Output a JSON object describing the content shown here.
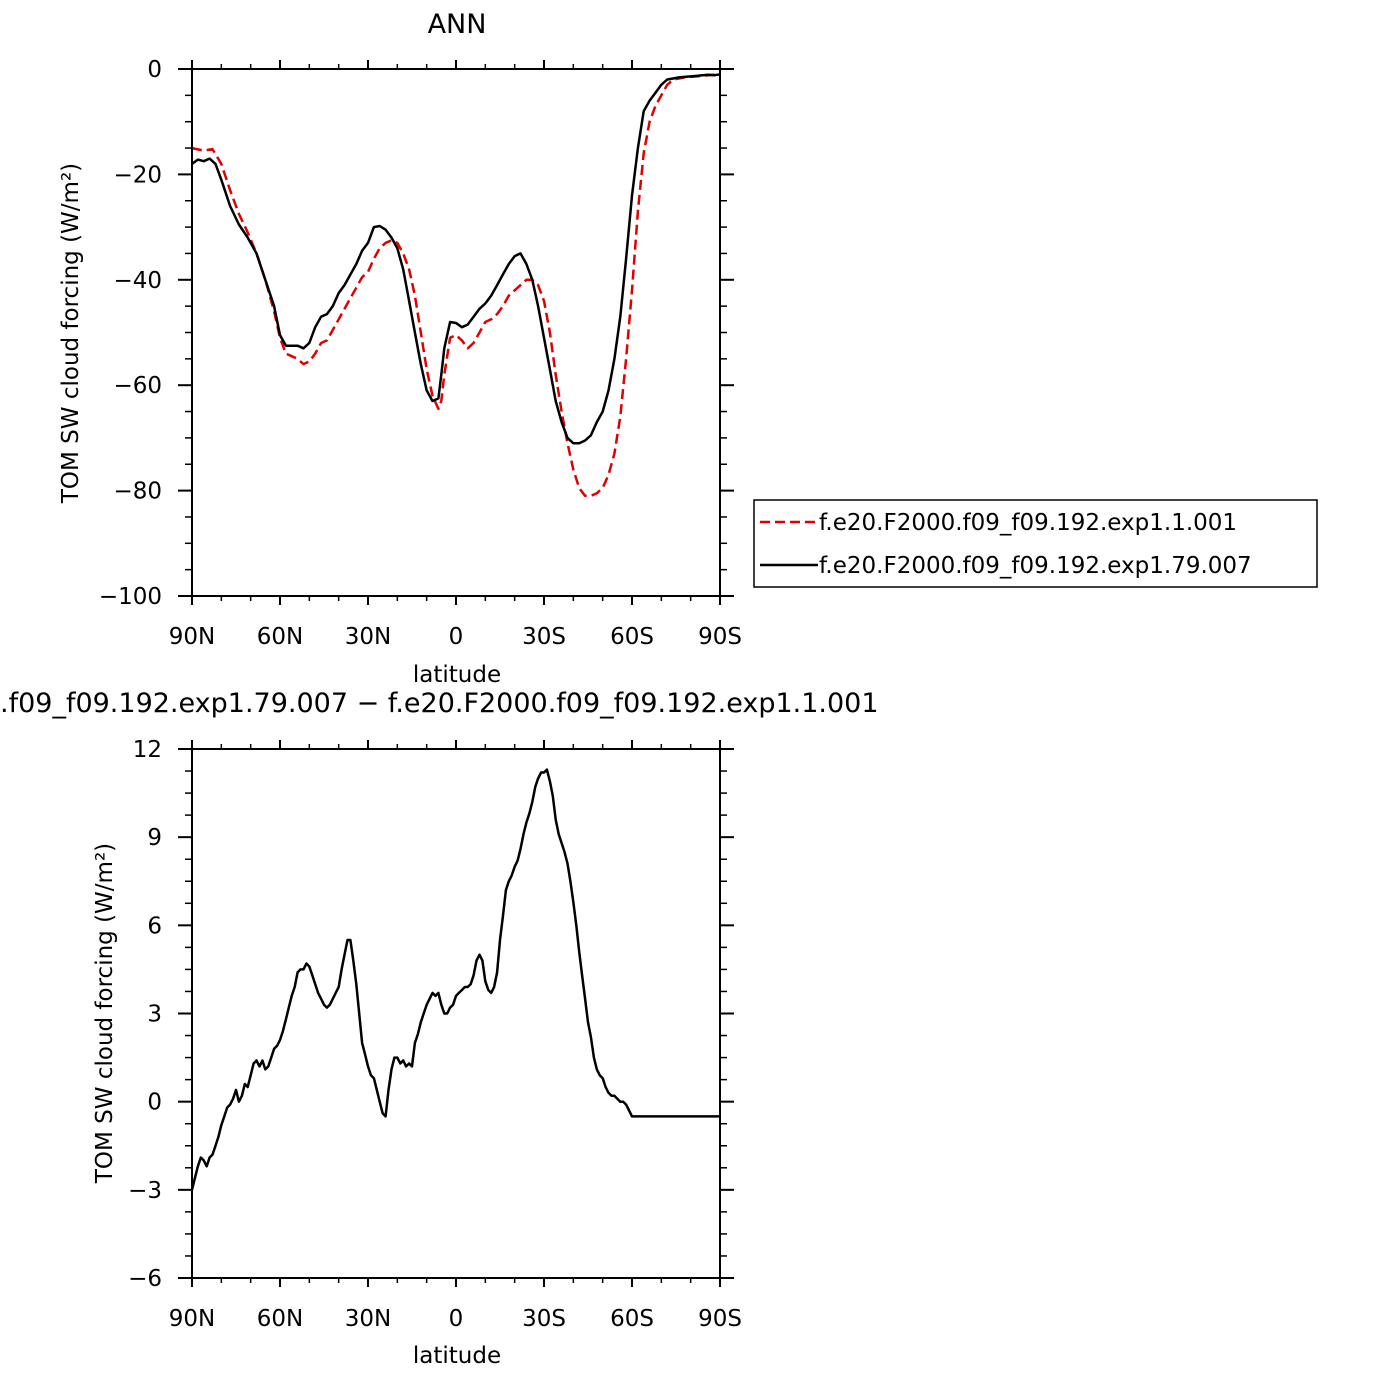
{
  "chart_data": [
    {
      "type": "line",
      "title": "ANN",
      "xlabel": "latitude",
      "ylabel": "TOM SW cloud forcing (W/m²)",
      "xlim": [
        90,
        -90
      ],
      "ylim": [
        -100,
        0
      ],
      "x_ticks": [
        90,
        60,
        30,
        0,
        -30,
        -60,
        -90
      ],
      "x_tick_labels": [
        "90N",
        "60N",
        "30N",
        "0",
        "30S",
        "60S",
        "90S"
      ],
      "y_ticks": [
        0,
        -20,
        -40,
        -60,
        -80,
        -100
      ],
      "y_tick_labels": [
        "0",
        "−20",
        "−40",
        "−60",
        "−80",
        "−100"
      ],
      "legend_position": "right",
      "series": [
        {
          "name": "f.e20.F2000.f09_f09.192.exp1.1.001",
          "color": "#e00000",
          "dash": "dashed",
          "x": [
            90,
            86,
            83,
            80,
            77,
            74,
            71,
            68,
            65,
            62,
            60,
            58,
            56,
            54,
            52,
            50,
            48,
            46,
            44,
            42,
            40,
            38,
            36,
            34,
            32,
            30,
            28,
            26,
            24,
            22,
            20,
            18,
            16,
            14,
            12,
            10,
            8,
            6,
            5,
            4,
            2,
            0,
            -2,
            -4,
            -6,
            -8,
            -10,
            -12,
            -14,
            -16,
            -18,
            -20,
            -22,
            -24,
            -26,
            -28,
            -30,
            -32,
            -34,
            -36,
            -38,
            -40,
            -42,
            -44,
            -46,
            -48,
            -50,
            -52,
            -54,
            -56,
            -58,
            -60,
            -62,
            -64,
            -66,
            -68,
            -70,
            -72,
            -74,
            -76,
            -78,
            -80,
            -82,
            -84,
            -86,
            -88,
            -90
          ],
          "y": [
            -15,
            -15.5,
            -15.2,
            -18,
            -23,
            -27.5,
            -31,
            -35,
            -40,
            -46,
            -51,
            -54,
            -54.5,
            -55,
            -56,
            -55.5,
            -54,
            -52,
            -51.5,
            -49.5,
            -47.5,
            -45.5,
            -43.5,
            -41.5,
            -39.5,
            -38.5,
            -36,
            -34,
            -33,
            -32.5,
            -33,
            -35,
            -38,
            -43,
            -50,
            -57,
            -62,
            -64.5,
            -63,
            -58,
            -51,
            -50.5,
            -51.5,
            -53,
            -52,
            -50,
            -48,
            -47.5,
            -46.5,
            -45,
            -43,
            -42,
            -41,
            -40,
            -40,
            -41,
            -44,
            -50,
            -58,
            -65,
            -71,
            -76,
            -79.5,
            -81,
            -81,
            -80.5,
            -79.5,
            -77,
            -73,
            -66,
            -55,
            -42,
            -27,
            -16,
            -10,
            -7,
            -5,
            -3,
            -2,
            -1.8,
            -1.6,
            -1.5,
            -1.4,
            -1.3,
            -1.2,
            -1.1,
            -1
          ]
        },
        {
          "name": "f.e20.F2000.f09_f09.192.exp1.79.007",
          "color": "#000000",
          "dash": "solid",
          "x": [
            90,
            88,
            86,
            84,
            82,
            80,
            77,
            74,
            71,
            68,
            65,
            62,
            60,
            58,
            56,
            54,
            52,
            50,
            48,
            46,
            44,
            42,
            40,
            38,
            36,
            34,
            32,
            30,
            28,
            26,
            24,
            22,
            20,
            18,
            16,
            14,
            12,
            10,
            8,
            6,
            5,
            4,
            2,
            0,
            -2,
            -4,
            -6,
            -8,
            -10,
            -12,
            -14,
            -16,
            -18,
            -20,
            -22,
            -24,
            -26,
            -28,
            -30,
            -32,
            -34,
            -36,
            -38,
            -40,
            -42,
            -44,
            -46,
            -48,
            -50,
            -52,
            -54,
            -56,
            -58,
            -60,
            -62,
            -64,
            -66,
            -68,
            -70,
            -72,
            -74,
            -76,
            -78,
            -80,
            -82,
            -84,
            -86,
            -88,
            -90
          ],
          "y": [
            -18,
            -17.2,
            -17.5,
            -17,
            -18,
            -21,
            -26,
            -29.5,
            -32,
            -35,
            -40,
            -45,
            -50.5,
            -52.5,
            -52.5,
            -52.5,
            -53,
            -52,
            -49,
            -47,
            -46.5,
            -45,
            -42.5,
            -41,
            -39,
            -37,
            -34.5,
            -33,
            -30,
            -29.8,
            -30.5,
            -32,
            -34,
            -38,
            -44,
            -50,
            -56,
            -61,
            -63,
            -62.5,
            -58,
            -53,
            -48,
            -48.2,
            -49,
            -48.5,
            -47,
            -45.5,
            -44.5,
            -43,
            -41,
            -39,
            -37,
            -35.5,
            -35,
            -37,
            -40,
            -45,
            -51,
            -57,
            -63,
            -67,
            -70,
            -71,
            -71,
            -70.5,
            -69.5,
            -67,
            -65,
            -61,
            -55,
            -47,
            -36,
            -24,
            -15,
            -8,
            -6,
            -4.5,
            -3,
            -2,
            -1.8,
            -1.6,
            -1.5,
            -1.4,
            -1.3,
            -1.2,
            -1.1,
            -1.2,
            -1
          ]
        }
      ]
    },
    {
      "type": "line",
      "title": ".f09_f09.192.exp1.79.007 − f.e20.F2000.f09_f09.192.exp1.1.001",
      "xlabel": "latitude",
      "ylabel": "TOM SW cloud forcing (W/m²)",
      "xlim": [
        90,
        -90
      ],
      "ylim": [
        -6,
        12
      ],
      "x_ticks": [
        90,
        60,
        30,
        0,
        -30,
        -60,
        -90
      ],
      "x_tick_labels": [
        "90N",
        "60N",
        "30N",
        "0",
        "30S",
        "60S",
        "90S"
      ],
      "y_ticks": [
        12,
        9,
        6,
        3,
        0,
        -3,
        -6
      ],
      "y_tick_labels": [
        "12",
        "9",
        "6",
        "3",
        "0",
        "−3",
        "−6"
      ],
      "series": [
        {
          "color": "#000000",
          "x": [
            90,
            89,
            88,
            87,
            86,
            85,
            84,
            83,
            82,
            81,
            80,
            79,
            78,
            77,
            76,
            75,
            74,
            73,
            72,
            71,
            70,
            69,
            68,
            67,
            66,
            65,
            64,
            63,
            62,
            61,
            60,
            59,
            58,
            57,
            56,
            55,
            54,
            53,
            52,
            51,
            50,
            49,
            48,
            47,
            46,
            45,
            44,
            43,
            42,
            41,
            40,
            39,
            38,
            37,
            36,
            35,
            34,
            33,
            32,
            31,
            30,
            29,
            28,
            27,
            26,
            25,
            24,
            23,
            22,
            21,
            20,
            19,
            18,
            17,
            16,
            15,
            14,
            13,
            12,
            11,
            10,
            9,
            8,
            7,
            6,
            5,
            4,
            3,
            2,
            1,
            0,
            -1,
            -2,
            -3,
            -4,
            -5,
            -6,
            -7,
            -8,
            -9,
            -10,
            -11,
            -12,
            -13,
            -14,
            -15,
            -16,
            -17,
            -18,
            -19,
            -20,
            -21,
            -22,
            -23,
            -24,
            -25,
            -26,
            -27,
            -28,
            -29,
            -30,
            -31,
            -32,
            -33,
            -34,
            -35,
            -36,
            -37,
            -38,
            -39,
            -40,
            -41,
            -42,
            -43,
            -44,
            -45,
            -46,
            -47,
            -48,
            -49,
            -50,
            -51,
            -52,
            -53,
            -54,
            -55,
            -56,
            -57,
            -58,
            -59,
            -60,
            -61,
            -62,
            -63,
            -64,
            -65,
            -66,
            -67,
            -68,
            -69,
            -70,
            -71,
            -72,
            -73,
            -74,
            -75,
            -76,
            -77,
            -78,
            -79,
            -80,
            -81,
            -82,
            -83,
            -84,
            -85,
            -86,
            -87,
            -88,
            -89,
            -90
          ],
          "y": [
            -3,
            -2.6,
            -2.2,
            -1.9,
            -2,
            -2.2,
            -1.9,
            -1.8,
            -1.5,
            -1.2,
            -0.8,
            -0.5,
            -0.2,
            -0.1,
            0.1,
            0.4,
            0,
            0.2,
            0.6,
            0.5,
            0.9,
            1.3,
            1.4,
            1.2,
            1.4,
            1.1,
            1.2,
            1.5,
            1.8,
            1.9,
            2.1,
            2.4,
            2.8,
            3.2,
            3.6,
            3.9,
            4.4,
            4.5,
            4.5,
            4.7,
            4.6,
            4.3,
            4,
            3.7,
            3.5,
            3.3,
            3.2,
            3.3,
            3.5,
            3.7,
            3.9,
            4.5,
            5,
            5.5,
            5.5,
            4.8,
            4,
            3,
            2,
            1.6,
            1.2,
            0.9,
            0.8,
            0.4,
            0,
            -0.4,
            -0.5,
            0.4,
            1.1,
            1.5,
            1.5,
            1.3,
            1.4,
            1.2,
            1.3,
            1.2,
            2,
            2.3,
            2.7,
            3,
            3.3,
            3.5,
            3.7,
            3.6,
            3.7,
            3.3,
            3,
            3,
            3.2,
            3.3,
            3.6,
            3.7,
            3.8,
            3.9,
            3.9,
            4,
            4.3,
            4.8,
            5,
            4.8,
            4.1,
            3.8,
            3.7,
            3.9,
            4.4,
            5.5,
            6.3,
            7.2,
            7.5,
            7.7,
            8,
            8.2,
            8.6,
            9.1,
            9.5,
            9.8,
            10.2,
            10.7,
            11,
            11.2,
            11.2,
            11.3,
            10.9,
            10.4,
            9.6,
            9.1,
            8.8,
            8.5,
            8.1,
            7.5,
            6.8,
            6,
            5.1,
            4.3,
            3.5,
            2.7,
            2.2,
            1.5,
            1.1,
            0.9,
            0.8,
            0.5,
            0.3,
            0.2,
            0.2,
            0.1,
            0,
            0,
            -0.1,
            -0.3,
            -0.5,
            -0.5,
            -0.5,
            -0.5,
            -0.5,
            -0.5,
            -0.5,
            -0.5,
            -0.5,
            -0.5,
            -0.5,
            -0.5,
            -0.5,
            -0.5,
            -0.5,
            -0.5,
            -0.5,
            -0.5,
            -0.5,
            -0.5,
            -0.5,
            -0.5,
            -0.5,
            -0.5,
            -0.5,
            -0.5,
            -0.5,
            -0.5,
            -0.5,
            -0.5,
            -0.5
          ]
        }
      ]
    }
  ]
}
